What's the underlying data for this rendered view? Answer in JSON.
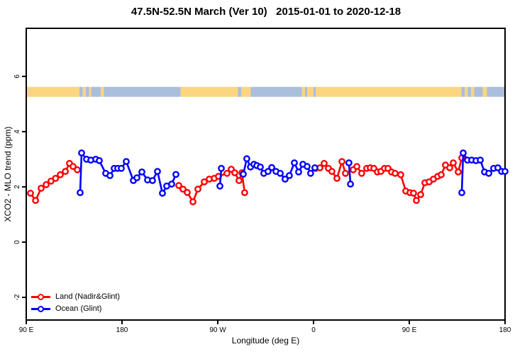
{
  "title": "47.5N-52.5N March (Ver 10)   2015-01-01 to 2020-12-18",
  "axes": {
    "x": {
      "label": "Longitude (deg E)",
      "ticks": [
        {
          "lon": 90,
          "label": "90 E"
        },
        {
          "lon": 180,
          "label": "180"
        },
        {
          "lon": 270,
          "label": "90 W"
        },
        {
          "lon": 360,
          "label": "0"
        },
        {
          "lon": 450,
          "label": "90 E"
        },
        {
          "lon": 540,
          "label": "180"
        }
      ]
    },
    "y": {
      "label": "XCO2 - MLO trend (ppm)",
      "ticks": [
        {
          "value": -2,
          "label": "-2"
        },
        {
          "value": 0,
          "label": "0"
        },
        {
          "value": 2,
          "label": "2"
        },
        {
          "value": 4,
          "label": "4"
        },
        {
          "value": 6,
          "label": "6"
        }
      ]
    }
  },
  "legend": {
    "items": [
      {
        "label": "Land (Nadir&Glint)",
        "color": "#ff0000"
      },
      {
        "label": "Ocean (Glint)",
        "color": "#0000ff"
      }
    ]
  },
  "colors": {
    "land_series": "#ff0000",
    "ocean_series": "#0000ff",
    "band_land": "#fcd581",
    "band_ocean": "#a9bfdc",
    "axis": "#000000",
    "background": "#ffffff"
  },
  "chart_data": {
    "type": "line",
    "title": "47.5N-52.5N March (Ver 10)   2015-01-01 to 2020-12-18",
    "xlabel": "Longitude (deg E)",
    "ylabel": "XCO2 - MLO trend (ppm)",
    "x_range": [
      90,
      540
    ],
    "y_range": [
      -2.82,
      7.74
    ],
    "grid": false,
    "legend_position": "bottom-left",
    "marker": "open-circle",
    "band": {
      "description": "land/ocean surface strip along longitude",
      "value_top": 5.62,
      "value_bottom": 5.26,
      "segments": [
        {
          "from": 90,
          "to": 140,
          "surface": "land"
        },
        {
          "from": 140,
          "to": 143,
          "surface": "ocean"
        },
        {
          "from": 143,
          "to": 146,
          "surface": "land"
        },
        {
          "from": 146,
          "to": 149,
          "surface": "ocean"
        },
        {
          "from": 149,
          "to": 151,
          "surface": "land"
        },
        {
          "from": 151,
          "to": 160,
          "surface": "ocean"
        },
        {
          "from": 160,
          "to": 163,
          "surface": "land"
        },
        {
          "from": 163,
          "to": 235,
          "surface": "ocean"
        },
        {
          "from": 235,
          "to": 289,
          "surface": "land"
        },
        {
          "from": 289,
          "to": 292,
          "surface": "ocean"
        },
        {
          "from": 292,
          "to": 301,
          "surface": "land"
        },
        {
          "from": 301,
          "to": 349,
          "surface": "ocean"
        },
        {
          "from": 349,
          "to": 352,
          "surface": "land"
        },
        {
          "from": 352,
          "to": 354,
          "surface": "ocean"
        },
        {
          "from": 354,
          "to": 360,
          "surface": "land"
        },
        {
          "from": 360,
          "to": 362,
          "surface": "ocean"
        },
        {
          "from": 362,
          "to": 499,
          "surface": "land"
        },
        {
          "from": 499,
          "to": 502,
          "surface": "ocean"
        },
        {
          "from": 502,
          "to": 505,
          "surface": "land"
        },
        {
          "from": 505,
          "to": 508,
          "surface": "ocean"
        },
        {
          "from": 508,
          "to": 511,
          "surface": "land"
        },
        {
          "from": 511,
          "to": 519,
          "surface": "ocean"
        },
        {
          "from": 519,
          "to": 523,
          "surface": "land"
        },
        {
          "from": 523,
          "to": 540,
          "surface": "ocean"
        }
      ]
    },
    "series": [
      {
        "name": "Land (Nadir&Glint)",
        "color": "#ff0000",
        "segments": [
          [
            [
              94,
              1.77
            ],
            [
              98.7,
              1.51
            ],
            [
              104,
              1.95
            ],
            [
              108.7,
              2.08
            ],
            [
              113.3,
              2.21
            ],
            [
              117.5,
              2.31
            ],
            [
              122,
              2.44
            ],
            [
              126.7,
              2.56
            ],
            [
              130.7,
              2.85
            ],
            [
              134,
              2.74
            ],
            [
              138,
              2.62
            ]
          ],
          [
            [
              233.3,
              2.05
            ],
            [
              237.3,
              1.92
            ],
            [
              241.3,
              1.8
            ],
            [
              246.7,
              1.46
            ],
            [
              251.3,
              1.92
            ],
            [
              257.3,
              2.18
            ],
            [
              262,
              2.28
            ],
            [
              266.7,
              2.31
            ],
            [
              270.7,
              2.38
            ],
            [
              278.7,
              2.49
            ],
            [
              282.7,
              2.64
            ],
            [
              286,
              2.51
            ],
            [
              290,
              2.23
            ],
            [
              292.7,
              2.51
            ],
            [
              295.3,
              1.79
            ]
          ],
          [
            [
              362,
              2.67
            ],
            [
              366,
              2.69
            ],
            [
              370,
              2.85
            ],
            [
              374,
              2.67
            ],
            [
              377.3,
              2.56
            ],
            [
              382,
              2.31
            ],
            [
              386.7,
              2.92
            ],
            [
              390,
              2.49
            ],
            [
              397.3,
              2.62
            ],
            [
              400.7,
              2.74
            ],
            [
              405.3,
              2.49
            ],
            [
              410,
              2.67
            ],
            [
              413.3,
              2.69
            ],
            [
              416.7,
              2.67
            ],
            [
              420,
              2.54
            ],
            [
              423.3,
              2.56
            ],
            [
              426.7,
              2.67
            ],
            [
              430,
              2.67
            ],
            [
              433.3,
              2.54
            ],
            [
              436.7,
              2.49
            ],
            [
              442,
              2.44
            ],
            [
              446.7,
              1.85
            ],
            [
              450.7,
              1.79
            ],
            [
              454,
              1.77
            ],
            [
              456.7,
              1.51
            ],
            [
              460.7,
              1.72
            ],
            [
              464.7,
              2.15
            ],
            [
              468.7,
              2.18
            ],
            [
              472.7,
              2.28
            ],
            [
              476.7,
              2.38
            ],
            [
              480,
              2.44
            ],
            [
              484,
              2.79
            ],
            [
              488,
              2.69
            ],
            [
              491.3,
              2.87
            ],
            [
              496,
              2.54
            ],
            [
              499.3,
              3.05
            ]
          ]
        ]
      },
      {
        "name": "Ocean (Glint)",
        "color": "#0000ff",
        "segments": [
          [
            [
              140.7,
              1.79
            ],
            [
              142,
              3.23
            ],
            [
              146.7,
              3.0
            ],
            [
              150.7,
              2.97
            ],
            [
              155.3,
              3.0
            ],
            [
              158.7,
              2.95
            ],
            [
              164.7,
              2.49
            ],
            [
              168.7,
              2.41
            ],
            [
              172.7,
              2.67
            ],
            [
              176,
              2.67
            ],
            [
              179.3,
              2.67
            ],
            [
              184,
              2.92
            ],
            [
              190.7,
              2.23
            ],
            [
              194,
              2.33
            ],
            [
              198.7,
              2.54
            ],
            [
              204,
              2.25
            ],
            [
              208.7,
              2.23
            ],
            [
              213.3,
              2.56
            ],
            [
              218,
              1.77
            ],
            [
              222,
              2.03
            ],
            [
              226.7,
              2.1
            ],
            [
              230.7,
              2.45
            ]
          ],
          [
            [
              272,
              2.03
            ],
            [
              273.3,
              2.67
            ]
          ],
          [
            [
              294,
              2.46
            ],
            [
              297.3,
              3.02
            ],
            [
              300.7,
              2.72
            ],
            [
              304,
              2.82
            ],
            [
              306.7,
              2.77
            ],
            [
              310,
              2.72
            ],
            [
              313.3,
              2.49
            ],
            [
              317.3,
              2.56
            ],
            [
              320.7,
              2.7
            ],
            [
              324.7,
              2.56
            ],
            [
              328.7,
              2.49
            ],
            [
              333.3,
              2.28
            ],
            [
              337.3,
              2.41
            ],
            [
              342,
              2.87
            ],
            [
              346,
              2.54
            ],
            [
              350,
              2.82
            ],
            [
              354,
              2.74
            ],
            [
              357.3,
              2.49
            ],
            [
              361.3,
              2.69
            ]
          ],
          [
            [
              393.3,
              2.87
            ],
            [
              394.7,
              2.1
            ]
          ],
          [
            [
              499.3,
              1.79
            ],
            [
              500.7,
              3.23
            ],
            [
              504.7,
              2.97
            ],
            [
              508.7,
              2.97
            ],
            [
              512.7,
              2.95
            ],
            [
              516.7,
              2.97
            ],
            [
              520.7,
              2.54
            ],
            [
              524.7,
              2.49
            ],
            [
              529.3,
              2.67
            ],
            [
              533.3,
              2.69
            ],
            [
              536.7,
              2.56
            ],
            [
              540,
              2.56
            ]
          ]
        ]
      }
    ]
  }
}
